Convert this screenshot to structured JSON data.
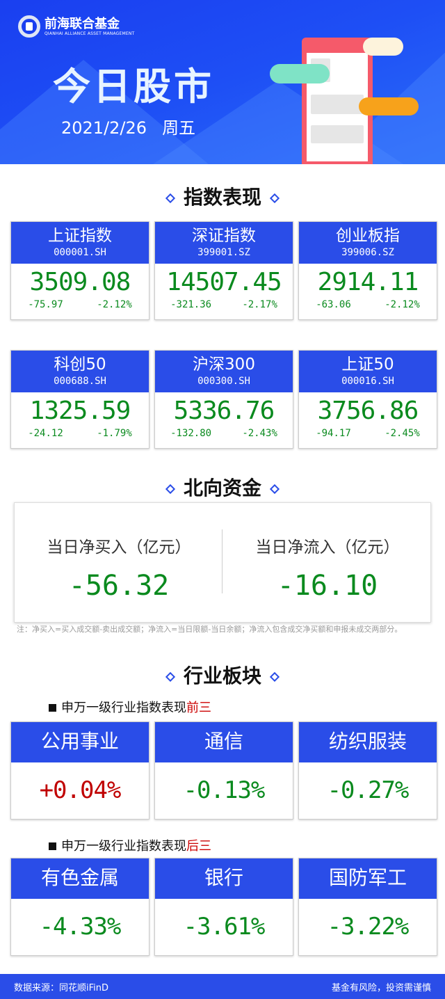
{
  "header": {
    "brand_cn": "前海联合基金",
    "brand_en": "QIANHAI ALLIANCE ASSET MANAGEMENT",
    "title": "今日股市",
    "date": "2021/2/26",
    "weekday": "周五"
  },
  "sections": {
    "index": "指数表现",
    "north": "北向资金",
    "industry": "行业板块"
  },
  "indices": [
    {
      "name": "上证指数",
      "code": "000001.SH",
      "value": "3509.08",
      "change": "-75.97",
      "pct": "-2.12%"
    },
    {
      "name": "深证指数",
      "code": "399001.SZ",
      "value": "14507.45",
      "change": "-321.36",
      "pct": "-2.17%"
    },
    {
      "name": "创业板指",
      "code": "399006.SZ",
      "value": "2914.11",
      "change": "-63.06",
      "pct": "-2.12%"
    },
    {
      "name": "科创50",
      "code": "000688.SH",
      "value": "1325.59",
      "change": "-24.12",
      "pct": "-1.79%"
    },
    {
      "name": "沪深300",
      "code": "000300.SH",
      "value": "5336.76",
      "change": "-132.80",
      "pct": "-2.43%"
    },
    {
      "name": "上证50",
      "code": "000016.SH",
      "value": "3756.86",
      "change": "-94.17",
      "pct": "-2.45%"
    }
  ],
  "north": {
    "buy_label": "当日净买入（亿元）",
    "buy_value": "-56.32",
    "flow_label": "当日净流入（亿元）",
    "flow_value": "-16.10",
    "note": "注：净买入=买入成交额-卖出成交额；净流入=当日限额-当日余额；净流入包含成交净买额和申报未成交两部分。"
  },
  "industry": {
    "top_prefix": "申万一级行业指数表现",
    "top_suffix": "前三",
    "top": [
      {
        "name": "公用事业",
        "pct": "+0.04%",
        "color": "#c00000"
      },
      {
        "name": "通信",
        "pct": "-0.13%",
        "color": "#0a8a1e"
      },
      {
        "name": "纺织服装",
        "pct": "-0.27%",
        "color": "#0a8a1e"
      }
    ],
    "bottom_prefix": "申万一级行业指数表现",
    "bottom_suffix": "后三",
    "bottom": [
      {
        "name": "有色金属",
        "pct": "-4.33%",
        "color": "#0a8a1e"
      },
      {
        "name": "银行",
        "pct": "-3.61%",
        "color": "#0a8a1e"
      },
      {
        "name": "国防军工",
        "pct": "-3.22%",
        "color": "#0a8a1e"
      }
    ]
  },
  "footer": {
    "source": "数据来源：同花顺iFinD",
    "risk": "基金有风险，投资需谨慎"
  },
  "colors": {
    "accent": "#2a4de8",
    "down": "#0a8a1e",
    "up": "#c00000"
  }
}
